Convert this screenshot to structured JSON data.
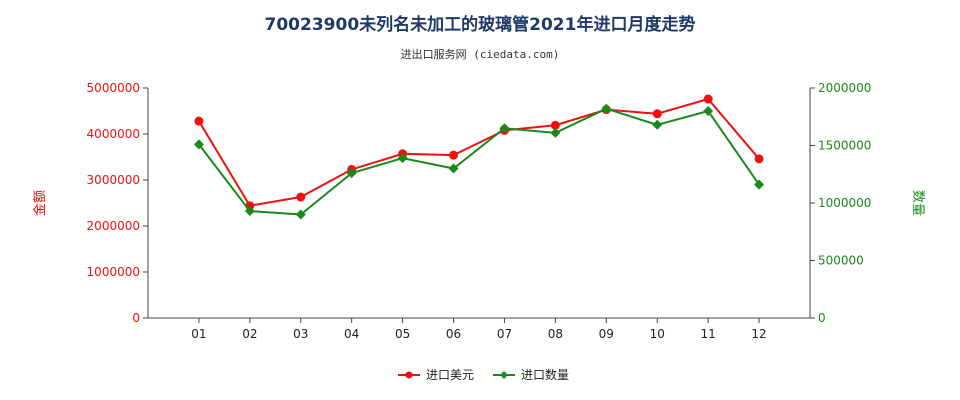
{
  "header": {
    "title": "70023900未列名未加工的玻璃管2021年进口月度走势",
    "subtitle": "进出口服务网 (ciedata.com)"
  },
  "colors": {
    "left_series": "#ee1111",
    "right_series": "#1a8a1a",
    "title": "#1f3a66"
  },
  "chart_data": {
    "type": "line",
    "title": "70023900未列名未加工的玻璃管2021年进口月度走势",
    "subtitle": "进出口服务网 (ciedata.com)",
    "categories": [
      "01",
      "02",
      "03",
      "04",
      "05",
      "06",
      "07",
      "08",
      "09",
      "10",
      "11",
      "12"
    ],
    "y_left": {
      "label": "金额",
      "ylim": [
        0,
        5000000
      ],
      "ticks": [
        "0",
        "1000000",
        "2000000",
        "3000000",
        "4000000",
        "5000000"
      ]
    },
    "y_right": {
      "label": "数量",
      "ylim": [
        0,
        2000000
      ],
      "ticks": [
        "0",
        "500000",
        "1000000",
        "1500000",
        "2000000"
      ]
    },
    "series": [
      {
        "name": "进口美元",
        "axis": "left",
        "marker": "circle",
        "values": [
          4280000,
          2440000,
          2630000,
          3230000,
          3570000,
          3540000,
          4080000,
          4190000,
          4530000,
          4440000,
          4760000,
          3460000
        ]
      },
      {
        "name": "进口数量",
        "axis": "right",
        "marker": "diamond",
        "values": [
          1510000,
          930000,
          900000,
          1260000,
          1390000,
          1300000,
          1650000,
          1610000,
          1820000,
          1680000,
          1800000,
          1160000
        ]
      }
    ],
    "legend_position": "bottom",
    "grid": false
  }
}
